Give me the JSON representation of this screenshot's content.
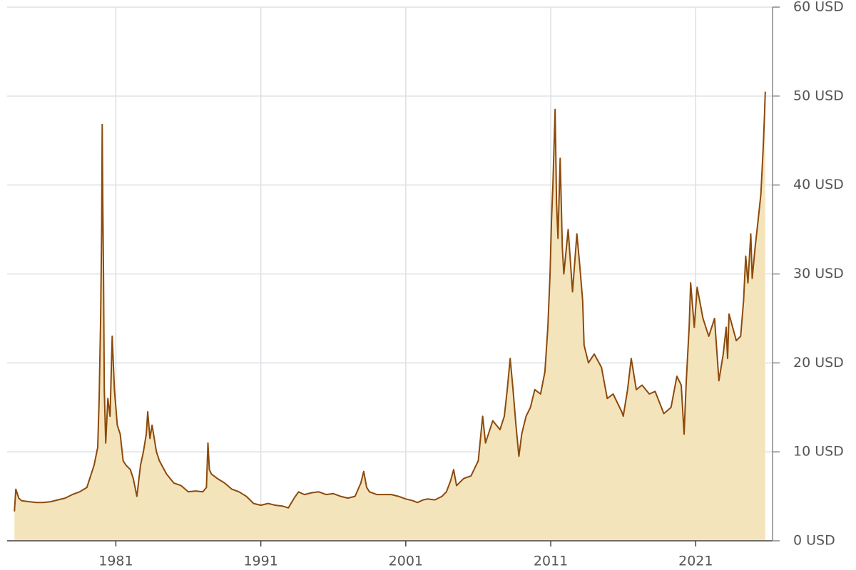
{
  "chart_data": {
    "type": "area",
    "x": [
      1974.0,
      1974.1,
      1974.3,
      1974.5,
      1975.0,
      1975.5,
      1976.0,
      1976.5,
      1977.0,
      1977.5,
      1978.0,
      1978.5,
      1979.0,
      1979.5,
      1979.75,
      1979.85,
      1979.95,
      1980.02,
      1980.06,
      1980.1,
      1980.15,
      1980.2,
      1980.3,
      1980.45,
      1980.6,
      1980.75,
      1980.9,
      1981.1,
      1981.3,
      1981.5,
      1981.7,
      1982.0,
      1982.2,
      1982.45,
      1982.7,
      1982.9,
      1983.1,
      1983.2,
      1983.35,
      1983.5,
      1983.8,
      1984.0,
      1984.5,
      1985.0,
      1985.5,
      1986.0,
      1986.5,
      1987.0,
      1987.25,
      1987.35,
      1987.45,
      1987.6,
      1988.0,
      1988.5,
      1989.0,
      1989.5,
      1990.0,
      1990.5,
      1991.0,
      1991.5,
      1992.0,
      1992.5,
      1992.9,
      1993.3,
      1993.6,
      1994.0,
      1994.5,
      1995.0,
      1995.5,
      1996.0,
      1996.5,
      1997.0,
      1997.5,
      1997.9,
      1998.1,
      1998.3,
      1998.5,
      1999.0,
      1999.5,
      2000.0,
      2000.5,
      2001.0,
      2001.5,
      2001.8,
      2002.2,
      2002.5,
      2003.0,
      2003.5,
      2003.8,
      2004.1,
      2004.3,
      2004.5,
      2005.0,
      2005.5,
      2006.0,
      2006.3,
      2006.5,
      2007.0,
      2007.5,
      2007.8,
      2008.0,
      2008.2,
      2008.4,
      2008.6,
      2008.8,
      2009.0,
      2009.3,
      2009.6,
      2009.9,
      2010.3,
      2010.6,
      2010.8,
      2010.95,
      2011.05,
      2011.15,
      2011.3,
      2011.4,
      2011.5,
      2011.65,
      2011.8,
      2011.9,
      2012.2,
      2012.5,
      2012.8,
      2013.0,
      2013.2,
      2013.3,
      2013.6,
      2014.0,
      2014.5,
      2014.9,
      2015.3,
      2015.9,
      2016.0,
      2016.3,
      2016.55,
      2016.9,
      2017.3,
      2017.8,
      2018.2,
      2018.8,
      2019.3,
      2019.7,
      2020.0,
      2020.2,
      2020.35,
      2020.55,
      2020.65,
      2020.9,
      2021.1,
      2021.5,
      2021.9,
      2022.3,
      2022.6,
      2022.9,
      2023.1,
      2023.2,
      2023.3,
      2023.8,
      2024.1,
      2024.3,
      2024.45,
      2024.6,
      2024.8,
      2024.9,
      2025.1,
      2025.3,
      2025.5,
      2025.65,
      2025.75,
      2025.8
    ],
    "values": [
      3.3,
      5.8,
      4.8,
      4.5,
      4.4,
      4.3,
      4.3,
      4.4,
      4.6,
      4.8,
      5.2,
      5.5,
      6.0,
      8.5,
      10.5,
      16.0,
      25.0,
      35.0,
      46.8,
      38.0,
      30.0,
      17.0,
      11.0,
      16.0,
      14.0,
      23.0,
      17.0,
      13.0,
      12.0,
      9.0,
      8.5,
      8.0,
      7.0,
      5.0,
      8.5,
      10.0,
      12.0,
      14.5,
      11.5,
      13.0,
      10.0,
      9.0,
      7.5,
      6.5,
      6.2,
      5.5,
      5.6,
      5.5,
      6.0,
      11.0,
      8.0,
      7.5,
      7.0,
      6.5,
      5.8,
      5.5,
      5.0,
      4.2,
      4.0,
      4.2,
      4.0,
      3.9,
      3.7,
      4.8,
      5.5,
      5.2,
      5.4,
      5.5,
      5.2,
      5.3,
      5.0,
      4.8,
      5.0,
      6.5,
      7.8,
      6.0,
      5.5,
      5.2,
      5.2,
      5.2,
      5.0,
      4.7,
      4.5,
      4.3,
      4.6,
      4.7,
      4.6,
      5.0,
      5.5,
      6.8,
      8.0,
      6.2,
      7.0,
      7.3,
      9.0,
      14.0,
      11.0,
      13.5,
      12.5,
      14.0,
      17.0,
      20.5,
      17.0,
      13.0,
      9.5,
      12.0,
      14.0,
      15.0,
      17.0,
      16.5,
      19.0,
      24.0,
      30.0,
      36.0,
      40.0,
      48.5,
      38.0,
      34.0,
      43.0,
      33.0,
      30.0,
      35.0,
      28.0,
      34.5,
      31.0,
      27.0,
      22.0,
      20.0,
      21.0,
      19.5,
      16.0,
      16.5,
      14.5,
      14.0,
      17.0,
      20.5,
      17.0,
      17.5,
      16.5,
      16.8,
      14.3,
      15.0,
      18.5,
      17.5,
      12.0,
      18.0,
      24.0,
      29.0,
      24.0,
      28.5,
      25.0,
      23.0,
      25.0,
      18.0,
      21.0,
      24.0,
      20.5,
      25.5,
      22.5,
      23.0,
      27.0,
      32.0,
      29.0,
      34.5,
      29.5,
      33.0,
      36.0,
      39.0,
      44.0,
      48.0,
      50.5
    ],
    "color": "#8c4a0c",
    "fill_color": "#f4e4bc",
    "xlim": [
      1973.5,
      2026.3
    ],
    "xticks": [
      1981,
      1991,
      2001,
      2011,
      2021
    ],
    "ylim": [
      0,
      60
    ],
    "yticks": [
      {
        "value": 0,
        "label": "0 USD"
      },
      {
        "value": 10,
        "label": "10 USD"
      },
      {
        "value": 20,
        "label": "20 USD"
      },
      {
        "value": 30,
        "label": "30 USD"
      },
      {
        "value": 40,
        "label": "40 USD"
      },
      {
        "value": 50,
        "label": "50 USD"
      },
      {
        "value": 60,
        "label": "60 USD"
      }
    ],
    "grid": true,
    "y_axis_side": "right"
  }
}
